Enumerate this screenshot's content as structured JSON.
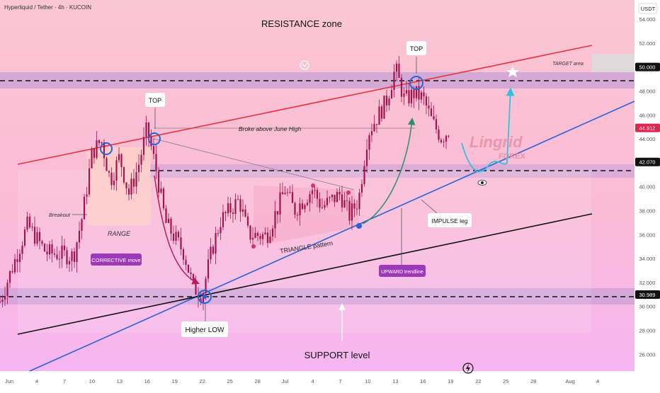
{
  "header": {
    "symbol_line": "Hyperliquid / Tether · 4h · KUCOIN",
    "currency": "USDT"
  },
  "price_axis": {
    "ticks": [
      "54.000",
      "52.000",
      "50.000",
      "48.000",
      "46.000",
      "44.912",
      "44.000",
      "42.070",
      "40.000",
      "38.000",
      "36.000",
      "34.000",
      "32.000",
      "30.989",
      "30.000",
      "28.000",
      "26.000"
    ]
  },
  "time_axis": {
    "ticks": [
      "Jun",
      "4",
      "7",
      "10",
      "13",
      "16",
      "19",
      "22",
      "25",
      "28",
      "Jul",
      "4",
      "7",
      "10",
      "13",
      "16",
      "19",
      "22",
      "25",
      "28",
      "Aug",
      "4"
    ]
  },
  "annotations": {
    "resistance_zone": "RESISTANCE zone",
    "support_level": "SUPPORT level",
    "top_left": "TOP",
    "top_right": "TOP",
    "target_area": "TARGET area",
    "broke_above": "Broke above June High",
    "breakout": "Breakout",
    "range": "RANGE",
    "corrective_move": "CORRECTIVE move",
    "triangle_pattern": "TRIANGLE pattern",
    "impulse_leg": "IMPULSE leg",
    "upward_trendline": "UPWARD trendline",
    "higher_low": "Higher LOW",
    "watermark_main": "Lingrid",
    "watermark_sub": "FOREX"
  },
  "colors": {
    "bg_top": "#fbc3d4",
    "bg_bottom": "#f7b8f0",
    "candle": "#a3134e",
    "resistance_line": "#e8333d",
    "upward_trendline": "#2a62d8",
    "support_trendline": "#111111",
    "zone_band": "#c9a3d9",
    "label_purple": "#9c39b8",
    "projection": "#27c3e0",
    "price_label_red": "#e0264f",
    "price_label_dark": "#111111"
  },
  "chart_data": {
    "type": "candlestick",
    "title": "Hyperliquid / Tether · 4h · KUCOIN",
    "y_unit": "USDT",
    "ylim": [
      24.6,
      55.6
    ],
    "x_range": [
      "2025-05-31",
      "2025-08-08"
    ],
    "key_levels": {
      "resistance": 50.0,
      "breakout_level": 42.07,
      "support": 30.989,
      "last_price": 44.912
    },
    "close_path": [
      [
        "2025-05-31",
        30.4
      ],
      [
        "2025-06-03",
        36.8
      ],
      [
        "2025-06-05",
        34.5
      ],
      [
        "2025-06-08",
        34.2
      ],
      [
        "2025-06-09",
        37.7
      ],
      [
        "2025-06-10",
        42.8
      ],
      [
        "2025-06-11",
        43.9
      ],
      [
        "2025-06-12",
        40.5
      ],
      [
        "2025-06-13",
        42.5
      ],
      [
        "2025-06-14",
        39.4
      ],
      [
        "2025-06-15",
        41.6
      ],
      [
        "2025-06-16",
        44.9
      ],
      [
        "2025-06-17",
        41.3
      ],
      [
        "2025-06-18",
        37.0
      ],
      [
        "2025-06-20",
        34.5
      ],
      [
        "2025-06-21",
        31.6
      ],
      [
        "2025-06-22",
        31.0
      ],
      [
        "2025-06-23",
        34.6
      ],
      [
        "2025-06-24",
        37.2
      ],
      [
        "2025-06-26",
        38.9
      ],
      [
        "2025-06-27",
        36.0
      ],
      [
        "2025-06-29",
        35.9
      ],
      [
        "2025-07-01",
        39.8
      ],
      [
        "2025-07-02",
        38.0
      ],
      [
        "2025-07-04",
        39.8
      ],
      [
        "2025-07-05",
        38.3
      ],
      [
        "2025-07-07",
        39.4
      ],
      [
        "2025-07-08",
        37.6
      ],
      [
        "2025-07-09",
        38.9
      ],
      [
        "2025-07-10",
        44.5
      ],
      [
        "2025-07-12",
        47.1
      ],
      [
        "2025-07-13",
        49.9
      ],
      [
        "2025-07-14",
        47.2
      ],
      [
        "2025-07-15",
        47.8
      ],
      [
        "2025-07-16",
        47.4
      ],
      [
        "2025-07-17",
        45.4
      ],
      [
        "2025-07-18",
        44.1
      ],
      [
        "2025-07-19",
        44.9
      ]
    ],
    "projection_path": [
      [
        "2025-07-19",
        44.9
      ],
      [
        "2025-07-21",
        42.0
      ],
      [
        "2025-07-22",
        43.4
      ],
      [
        "2025-07-23",
        43.1
      ],
      [
        "2025-07-24",
        49.5
      ]
    ],
    "trendlines": [
      {
        "label": "resistance",
        "from": [
          "2025-05-31",
          42.4
        ],
        "to": [
          "2025-08-05",
          53.0
        ]
      },
      {
        "label": "UPWARD trendline",
        "from": [
          "2025-06-02",
          24.6
        ],
        "to": [
          "2025-08-08",
          48.3
        ]
      },
      {
        "label": "support trendline",
        "from": [
          "2025-06-01",
          28.8
        ],
        "to": [
          "2025-08-05",
          38.3
        ]
      }
    ]
  }
}
